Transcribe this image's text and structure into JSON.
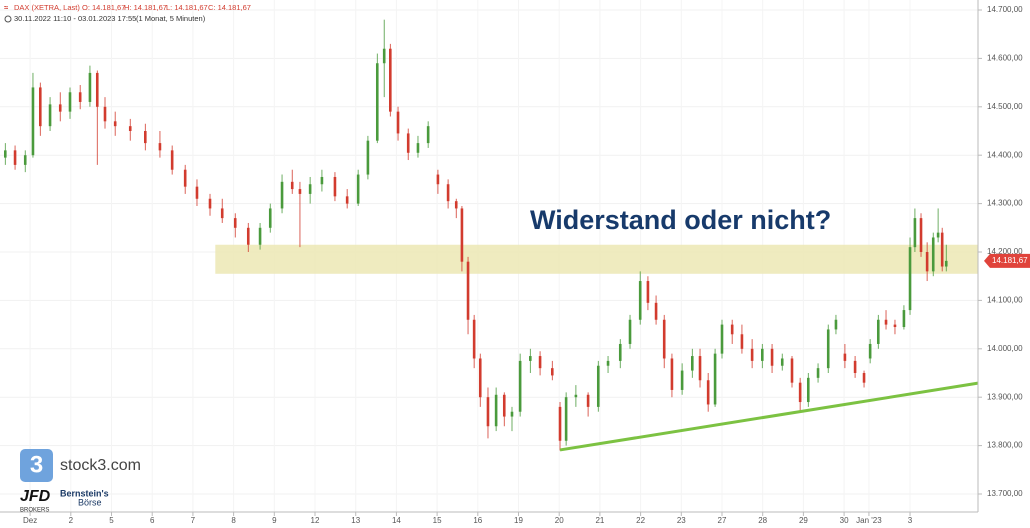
{
  "chart_data": {
    "type": "candlestick",
    "header": {
      "symbol": "DAX (XETRA, Last)",
      "open": "O: 14.181,67",
      "high": "H: 14.181,67",
      "low": "L: 14.181,67",
      "close": "C: 14.181,67",
      "range": "30.11.2022 11:10 - 03.01.2023 17:55",
      "period": "(1 Monat, 5 Minuten)"
    },
    "annotation": "Widerstand oder nicht?",
    "up_color": "#4a9a3c",
    "down_color": "#d23b2e",
    "grid": true,
    "xlim": [
      -0.74,
      23.29
    ],
    "ylim": [
      13700,
      14700
    ],
    "xticks": [
      {
        "value": 0,
        "label": "Dez"
      },
      {
        "value": 1,
        "label": "2"
      },
      {
        "value": 2,
        "label": "5"
      },
      {
        "value": 3,
        "label": "6"
      },
      {
        "value": 4,
        "label": "7"
      },
      {
        "value": 5,
        "label": "8"
      },
      {
        "value": 6,
        "label": "9"
      },
      {
        "value": 7,
        "label": "12"
      },
      {
        "value": 8,
        "label": "13"
      },
      {
        "value": 9,
        "label": "14"
      },
      {
        "value": 10,
        "label": "15"
      },
      {
        "value": 11,
        "label": "16"
      },
      {
        "value": 12,
        "label": "19"
      },
      {
        "value": 13,
        "label": "20"
      },
      {
        "value": 14,
        "label": "21"
      },
      {
        "value": 15,
        "label": "22"
      },
      {
        "value": 16,
        "label": "23"
      },
      {
        "value": 17,
        "label": "27"
      },
      {
        "value": 18,
        "label": "28"
      },
      {
        "value": 19,
        "label": "29"
      },
      {
        "value": 20,
        "label": "30"
      },
      {
        "value": 20.61,
        "label": "Jan '23"
      },
      {
        "value": 21.62,
        "label": "3"
      }
    ],
    "yticks": [
      {
        "value": 13700,
        "label": "13.700,00"
      },
      {
        "value": 13800,
        "label": "13.800,00"
      },
      {
        "value": 13900,
        "label": "13.900,00"
      },
      {
        "value": 14000,
        "label": "14.000,00"
      },
      {
        "value": 14100,
        "label": "14.100,00"
      },
      {
        "value": 14200,
        "label": "14.200,00"
      },
      {
        "value": 14300,
        "label": "14.300,00"
      },
      {
        "value": 14400,
        "label": "14.400,00"
      },
      {
        "value": 14500,
        "label": "14.500,00"
      },
      {
        "value": 14600,
        "label": "14.600,00"
      },
      {
        "value": 14700,
        "label": "14.700,00"
      }
    ],
    "zone": {
      "x_start": 4.55,
      "from": 14155,
      "to": 14215,
      "color": "#ece7b4"
    },
    "trendline": {
      "x": [
        13.02,
        23.29
      ],
      "y": [
        13791,
        13929
      ],
      "color": "#7cc242"
    },
    "last_price": {
      "value": 14181.67,
      "label": "14.181,67",
      "color": "#e0433b"
    },
    "logos": {
      "stock3": "stock3.com",
      "jfd": "JFD",
      "jfd_sub": "BROKERS",
      "bernstein": "Bernstein's",
      "boerse": "Börse"
    },
    "series": [
      {
        "name": "DAX (XETRA, Last)",
        "x": [
          -0.61,
          -0.37,
          -0.12,
          0.07,
          0.25,
          0.49,
          0.74,
          0.98,
          1.23,
          1.47,
          1.65,
          1.84,
          2.09,
          2.46,
          2.83,
          3.19,
          3.49,
          3.81,
          4.1,
          4.42,
          4.72,
          5.04,
          5.36,
          5.65,
          5.9,
          6.19,
          6.44,
          6.63,
          6.88,
          7.17,
          7.49,
          7.79,
          8.06,
          8.3,
          8.53,
          8.7,
          8.85,
          9.04,
          9.29,
          9.53,
          9.78,
          10.02,
          10.27,
          10.47,
          10.61,
          10.76,
          10.91,
          11.06,
          11.25,
          11.45,
          11.65,
          11.84,
          12.04,
          12.29,
          12.53,
          12.83,
          13.02,
          13.17,
          13.41,
          13.71,
          13.96,
          14.2,
          14.5,
          14.74,
          14.99,
          15.18,
          15.38,
          15.58,
          15.77,
          16.02,
          16.27,
          16.46,
          16.66,
          16.83,
          17.0,
          17.25,
          17.49,
          17.74,
          17.99,
          18.23,
          18.48,
          18.72,
          18.92,
          19.12,
          19.36,
          19.61,
          19.8,
          20.02,
          20.27,
          20.49,
          20.64,
          20.84,
          21.03,
          21.25,
          21.47,
          21.62,
          21.74,
          21.89,
          22.04,
          22.19,
          22.31,
          22.41,
          22.51
        ],
        "open": [
          14395,
          14410,
          14380,
          14400,
          14540,
          14460,
          14505,
          14490,
          14530,
          14510,
          14570,
          14500,
          14470,
          14460,
          14450,
          14425,
          14410,
          14370,
          14335,
          14310,
          14290,
          14270,
          14250,
          14215,
          14250,
          14290,
          14345,
          14330,
          14320,
          14340,
          14355,
          14315,
          14300,
          14360,
          14430,
          14590,
          14620,
          14490,
          14445,
          14405,
          14425,
          14360,
          14340,
          14305,
          14290,
          14180,
          14060,
          13980,
          13900,
          13840,
          13905,
          13860,
          13870,
          13975,
          13985,
          13960,
          13880,
          13810,
          13900,
          13905,
          13880,
          13965,
          13975,
          14010,
          14060,
          14140,
          14095,
          14060,
          13980,
          13915,
          13955,
          13985,
          13935,
          13885,
          13990,
          14050,
          14030,
          14000,
          13975,
          14000,
          13965,
          13980,
          13930,
          13890,
          13940,
          13960,
          14040,
          13990,
          13975,
          13950,
          13980,
          14010,
          14060,
          14050,
          14045,
          14080,
          14210,
          14270,
          14200,
          14160,
          14230,
          14240,
          14170
        ],
        "high": [
          14425,
          14420,
          14410,
          14570,
          14550,
          14520,
          14530,
          14540,
          14545,
          14585,
          14575,
          14520,
          14490,
          14475,
          14465,
          14450,
          14420,
          14380,
          14350,
          14320,
          14310,
          14280,
          14260,
          14260,
          14300,
          14360,
          14370,
          14345,
          14355,
          14370,
          14365,
          14330,
          14370,
          14440,
          14610,
          14680,
          14630,
          14500,
          14455,
          14440,
          14470,
          14370,
          14350,
          14310,
          14295,
          14190,
          14070,
          13990,
          13920,
          13920,
          13910,
          13880,
          13990,
          14000,
          13995,
          13975,
          13890,
          13910,
          13925,
          13910,
          13975,
          13985,
          14020,
          14070,
          14160,
          14150,
          14110,
          14070,
          13990,
          13970,
          14000,
          14000,
          13950,
          14000,
          14060,
          14060,
          14050,
          14020,
          14010,
          14010,
          13990,
          13985,
          13940,
          13950,
          13970,
          14050,
          14070,
          14010,
          13985,
          13955,
          14020,
          14070,
          14080,
          14060,
          14090,
          14230,
          14290,
          14280,
          14220,
          14240,
          14290,
          14250,
          14215
        ],
        "low": [
          14380,
          14370,
          14365,
          14395,
          14440,
          14450,
          14470,
          14475,
          14495,
          14500,
          14380,
          14455,
          14440,
          14430,
          14410,
          14395,
          14360,
          14320,
          14295,
          14275,
          14260,
          14230,
          14200,
          14205,
          14240,
          14280,
          14320,
          14210,
          14300,
          14325,
          14305,
          14290,
          14295,
          14350,
          14425,
          14520,
          14480,
          14430,
          14390,
          14395,
          14415,
          14320,
          14290,
          14270,
          14160,
          14030,
          13960,
          13880,
          13815,
          13830,
          13840,
          13830,
          13860,
          13950,
          13945,
          13935,
          13790,
          13800,
          13880,
          13860,
          13870,
          13950,
          13960,
          14000,
          14050,
          14080,
          14050,
          13960,
          13900,
          13905,
          13940,
          13920,
          13870,
          13880,
          13980,
          14010,
          13990,
          13960,
          13960,
          13950,
          13955,
          13920,
          13870,
          13880,
          13930,
          13950,
          14030,
          13960,
          13940,
          13920,
          13970,
          14000,
          14040,
          14030,
          14040,
          14070,
          14200,
          14190,
          14140,
          14150,
          14220,
          14160,
          14160
        ],
        "close": [
          14410,
          14380,
          14400,
          14540,
          14460,
          14505,
          14490,
          14530,
          14510,
          14570,
          14500,
          14470,
          14460,
          14450,
          14425,
          14410,
          14370,
          14335,
          14310,
          14290,
          14270,
          14250,
          14215,
          14250,
          14290,
          14345,
          14330,
          14320,
          14340,
          14355,
          14315,
          14300,
          14360,
          14430,
          14590,
          14620,
          14490,
          14445,
          14405,
          14425,
          14460,
          14340,
          14305,
          14290,
          14180,
          14060,
          13980,
          13900,
          13840,
          13905,
          13860,
          13870,
          13975,
          13985,
          13960,
          13945,
          13810,
          13900,
          13905,
          13880,
          13965,
          13975,
          14010,
          14060,
          14140,
          14095,
          14060,
          13980,
          13915,
          13955,
          13985,
          13935,
          13885,
          13990,
          14050,
          14030,
          14000,
          13975,
          14000,
          13965,
          13980,
          13930,
          13890,
          13940,
          13960,
          14040,
          14060,
          13975,
          13950,
          13930,
          14010,
          14060,
          14050,
          14045,
          14080,
          14210,
          14270,
          14200,
          14160,
          14230,
          14240,
          14170,
          14181.67
        ]
      }
    ]
  }
}
